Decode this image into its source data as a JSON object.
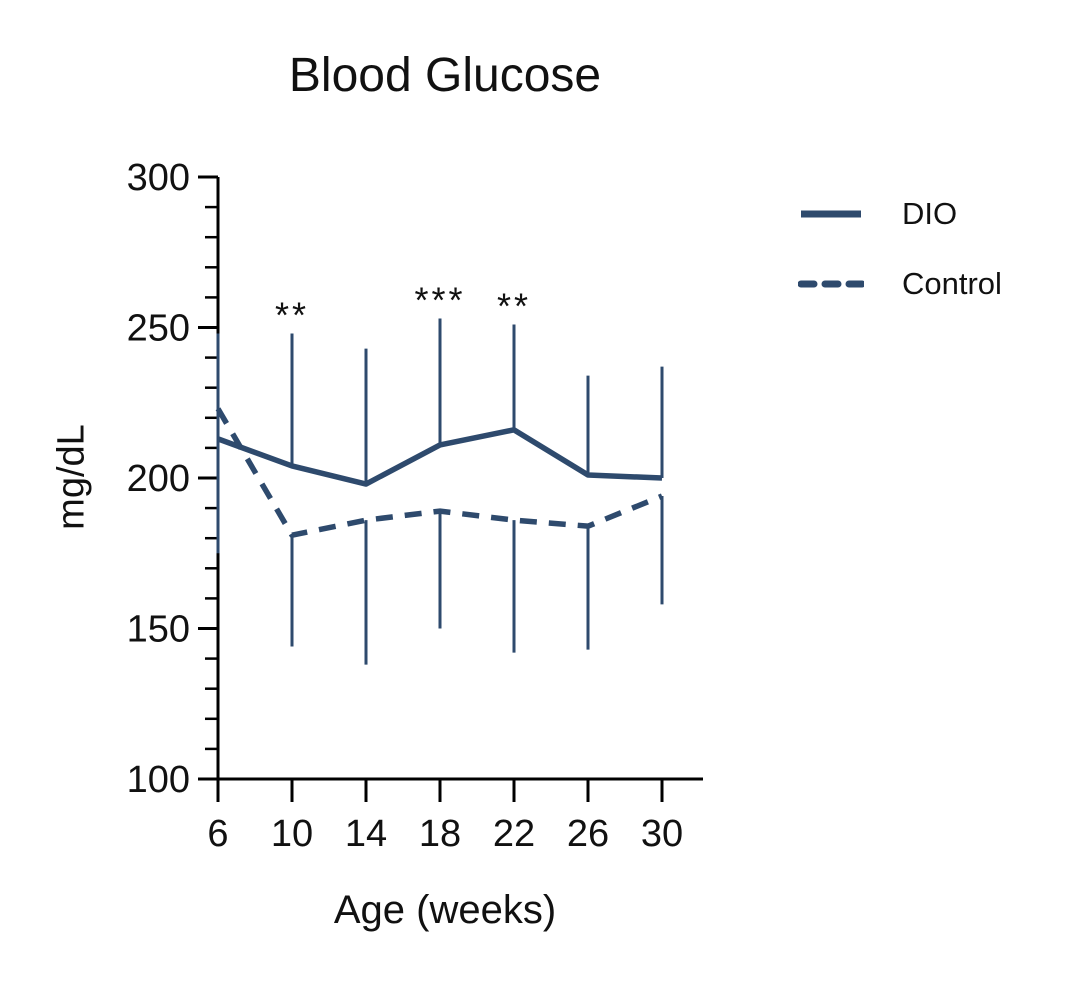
{
  "page": {
    "background": "#ffffff"
  },
  "chart_data": {
    "type": "line",
    "title": "Blood Glucose",
    "xlabel": "Age (weeks)",
    "ylabel": "mg/dL",
    "x": [
      6,
      10,
      14,
      18,
      22,
      26,
      30
    ],
    "xticks": [
      6,
      10,
      14,
      18,
      22,
      26,
      30
    ],
    "xlim": [
      6,
      30
    ],
    "ylim": [
      100,
      300
    ],
    "yticks_major": [
      100,
      150,
      200,
      250,
      300
    ],
    "ytick_minor_step": 10,
    "grid": false,
    "legend_position": "right",
    "series": [
      {
        "name": "DIO",
        "style": "solid",
        "values": [
          213,
          204,
          198,
          211,
          216,
          201,
          200
        ],
        "error_upper": [
          248,
          248,
          243,
          253,
          251,
          234,
          237
        ]
      },
      {
        "name": "Control",
        "style": "dashed",
        "values": [
          223,
          181,
          186,
          189,
          186,
          184,
          194
        ],
        "error_lower": [
          175,
          144,
          138,
          150,
          142,
          143,
          158
        ]
      }
    ],
    "annotations": [
      {
        "x": 10,
        "label": "**"
      },
      {
        "x": 18,
        "label": "***"
      },
      {
        "x": 22,
        "label": "**"
      }
    ],
    "colors": {
      "series": "#2e4a6d",
      "axis": "#000000",
      "text": "#111111"
    }
  }
}
